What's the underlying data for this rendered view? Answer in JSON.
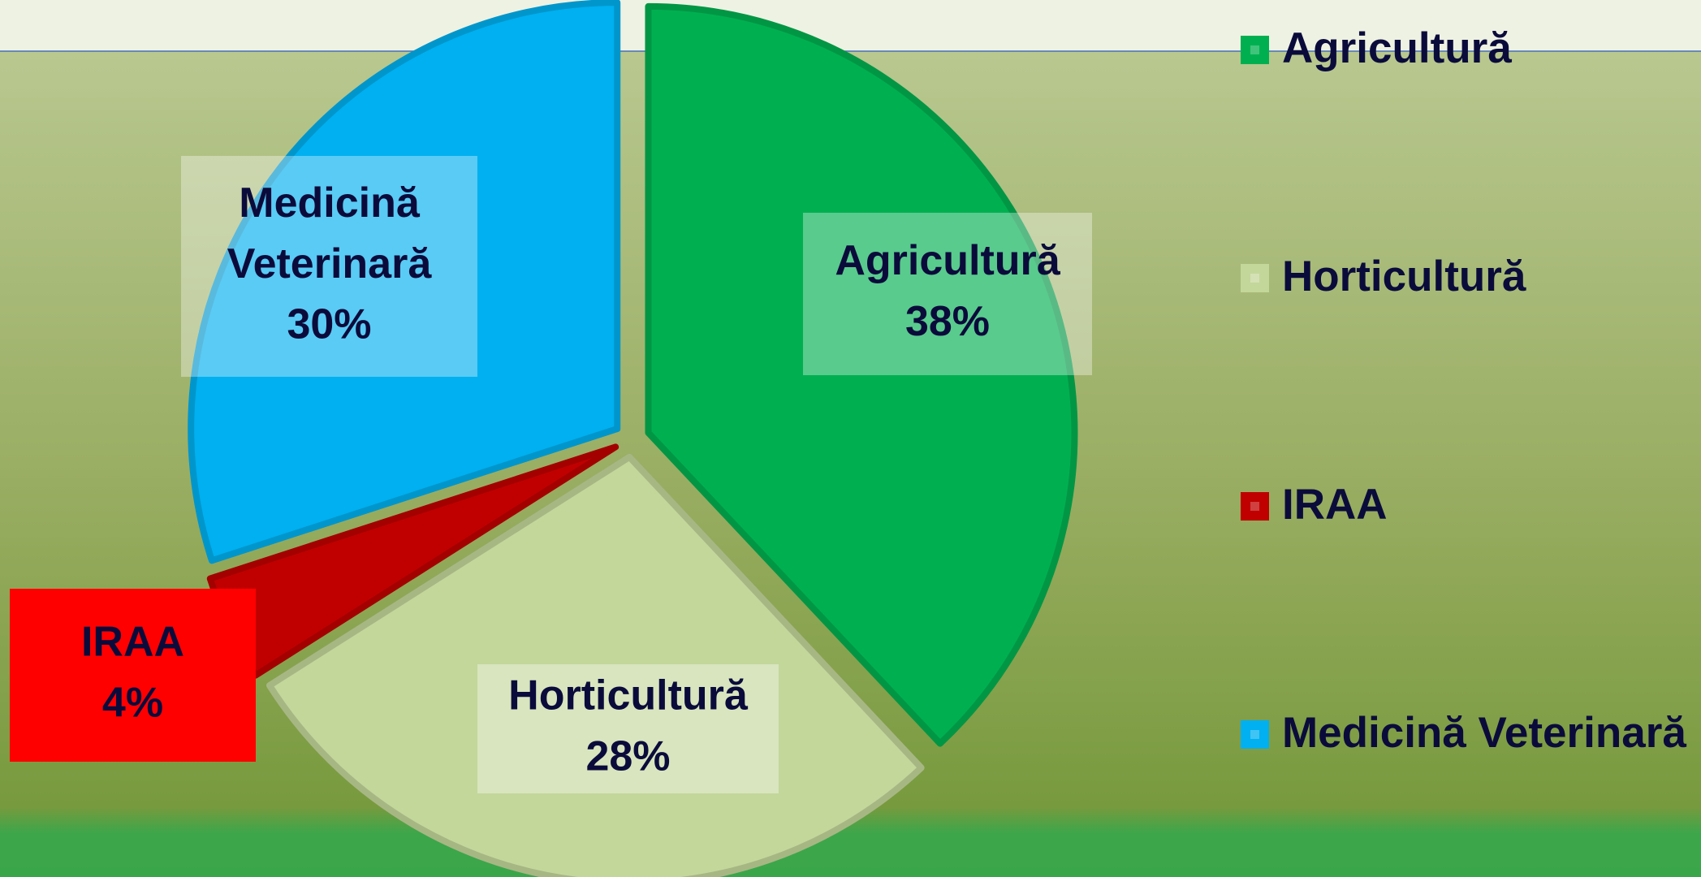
{
  "chart_data": {
    "type": "pie",
    "categories": [
      "Agricultură",
      "Horticultură",
      "IRAA",
      "Medicină Veterinară"
    ],
    "values": [
      38,
      28,
      4,
      30
    ],
    "value_labels": [
      "38%",
      "28%",
      "4%",
      "30%"
    ],
    "colors": [
      "#00b050",
      "#c4d79b",
      "#c00000",
      "#00b0f0"
    ],
    "legend": "right"
  }
}
